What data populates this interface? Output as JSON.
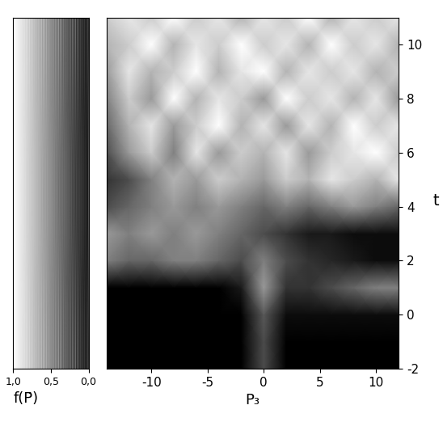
{
  "chart_data": {
    "type": "heatmap",
    "x_label": "P₃",
    "y_label": "t",
    "x": [
      -14,
      -12,
      -10,
      -8,
      -6,
      -4,
      -2,
      0,
      2,
      4,
      6,
      8,
      10,
      12
    ],
    "y": [
      -2,
      -1,
      0,
      1,
      2,
      3,
      4,
      5,
      6,
      7,
      8,
      9,
      10,
      11
    ],
    "xlim": [
      -14,
      12
    ],
    "xticks": [
      -10,
      -5,
      0,
      5,
      10
    ],
    "ylim": [
      -2,
      11
    ],
    "yticks": [
      -2,
      0,
      2,
      4,
      6,
      8,
      10
    ],
    "cells": [
      [
        0,
        0,
        0,
        0,
        0,
        0,
        0,
        0.3,
        0,
        0,
        0,
        0,
        0,
        0
      ],
      [
        0,
        0,
        0,
        0,
        0,
        0,
        0,
        0.3,
        0,
        0,
        0,
        0,
        0,
        0
      ],
      [
        0,
        0,
        0,
        0,
        0,
        0,
        0,
        0.35,
        0.05,
        0.05,
        0.05,
        0.05,
        0.05,
        0.05
      ],
      [
        0,
        0,
        0,
        0,
        0,
        0,
        0.1,
        0.6,
        0.2,
        0.2,
        0.3,
        0.4,
        0.5,
        0.5
      ],
      [
        0.5,
        0.4,
        0.4,
        0.5,
        0.5,
        0.4,
        0.3,
        0.5,
        0.3,
        0.2,
        0.15,
        0.1,
        0.05,
        0.05
      ],
      [
        0.6,
        0.5,
        0.6,
        0.5,
        0.6,
        0.5,
        0.4,
        0.3,
        0.2,
        0.1,
        0.1,
        0.05,
        0.05,
        0.05
      ],
      [
        0.3,
        0.4,
        0.5,
        0.6,
        0.5,
        0.6,
        0.5,
        0.4,
        0.5,
        0.4,
        0.5,
        0.6,
        0.5,
        0.4
      ],
      [
        0.2,
        0.3,
        0.5,
        0.7,
        0.6,
        0.8,
        0.7,
        0.6,
        0.8,
        0.7,
        0.9,
        0.8,
        0.7,
        0.9
      ],
      [
        0.3,
        0.6,
        0.8,
        0.5,
        0.9,
        0.6,
        0.8,
        0.7,
        0.9,
        0.6,
        0.8,
        0.9,
        1.0,
        0.8
      ],
      [
        0.4,
        0.7,
        0.9,
        0.6,
        0.8,
        1.0,
        0.7,
        0.9,
        0.6,
        0.9,
        0.7,
        1.0,
        0.8,
        0.9
      ],
      [
        0.5,
        0.8,
        0.6,
        1.0,
        0.7,
        0.9,
        0.8,
        0.6,
        1.0,
        0.8,
        0.9,
        0.7,
        0.9,
        0.6
      ],
      [
        0.6,
        0.9,
        0.7,
        0.8,
        1.0,
        0.7,
        0.9,
        1.0,
        0.7,
        0.9,
        0.8,
        0.9,
        0.7,
        0.8
      ],
      [
        0.7,
        0.8,
        1.0,
        0.7,
        0.9,
        0.8,
        1.0,
        0.8,
        0.9,
        0.7,
        1.0,
        0.8,
        0.9,
        0.7
      ],
      [
        0.8,
        0.9,
        0.8,
        1.0,
        0.8,
        0.9,
        0.7,
        0.9,
        0.8,
        1.0,
        0.7,
        0.9,
        0.8,
        0.9
      ]
    ],
    "colorbar": {
      "label": "f(P̄)",
      "range": [
        1.0,
        0.0
      ],
      "ticks": [
        {
          "value": 1.0,
          "label": "1,0"
        },
        {
          "value": 0.5,
          "label": "0,5"
        },
        {
          "value": 0.0,
          "label": "0,0"
        }
      ]
    },
    "color": "gray"
  }
}
